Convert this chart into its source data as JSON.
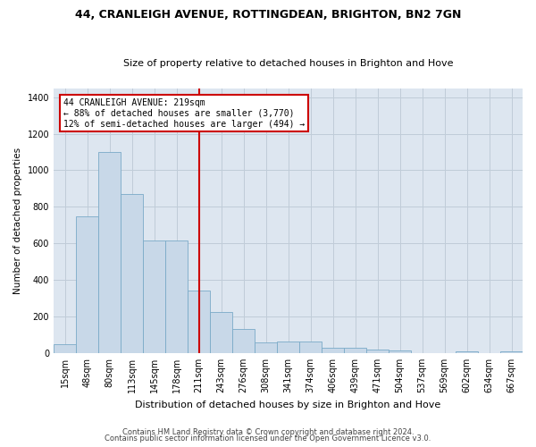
{
  "title1": "44, CRANLEIGH AVENUE, ROTTINGDEAN, BRIGHTON, BN2 7GN",
  "title2": "Size of property relative to detached houses in Brighton and Hove",
  "xlabel": "Distribution of detached houses by size in Brighton and Hove",
  "ylabel": "Number of detached properties",
  "footnote1": "Contains HM Land Registry data © Crown copyright and database right 2024.",
  "footnote2": "Contains public sector information licensed under the Open Government Licence v3.0.",
  "annotation_title": "44 CRANLEIGH AVENUE: 219sqm",
  "annotation_line2": "← 88% of detached houses are smaller (3,770)",
  "annotation_line3": "12% of semi-detached houses are larger (494) →",
  "property_size_bin": 6,
  "bar_color": "#c8d8e8",
  "bar_edge_color": "#7aaac8",
  "vline_color": "#cc0000",
  "annotation_box_color": "#cc0000",
  "background_color": "#ffffff",
  "plot_bg_color": "#dde6f0",
  "grid_color": "#c0ccd8",
  "categories": [
    "15sqm",
    "48sqm",
    "80sqm",
    "113sqm",
    "145sqm",
    "178sqm",
    "211sqm",
    "243sqm",
    "276sqm",
    "308sqm",
    "341sqm",
    "374sqm",
    "406sqm",
    "439sqm",
    "471sqm",
    "504sqm",
    "537sqm",
    "569sqm",
    "602sqm",
    "634sqm",
    "667sqm"
  ],
  "values": [
    50,
    750,
    1100,
    870,
    615,
    615,
    340,
    225,
    130,
    60,
    65,
    65,
    30,
    30,
    20,
    13,
    0,
    0,
    10,
    0,
    10
  ],
  "ylim": [
    0,
    1450
  ],
  "yticks": [
    0,
    200,
    400,
    600,
    800,
    1000,
    1200,
    1400
  ],
  "title1_fontsize": 9,
  "title2_fontsize": 8,
  "xlabel_fontsize": 8,
  "ylabel_fontsize": 7.5,
  "tick_fontsize": 7,
  "annotation_fontsize": 7,
  "footnote_fontsize": 6
}
